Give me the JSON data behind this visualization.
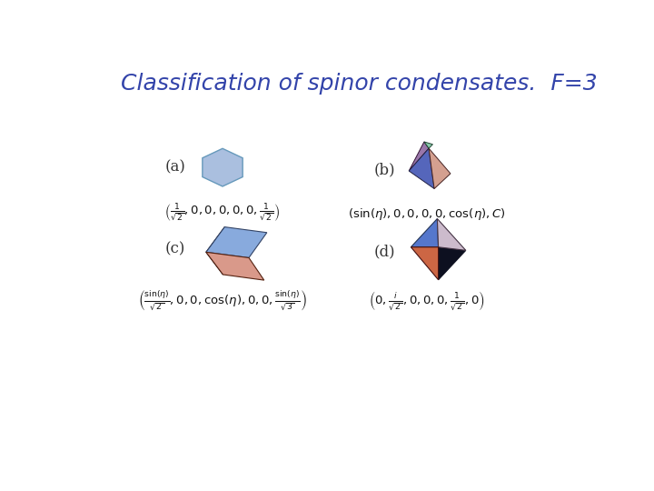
{
  "title": "Classification of spinor condensates.  F=3",
  "title_color": "#3344aa",
  "title_fontsize": 18,
  "bg_color": "#ffffff",
  "label_a": "(a)",
  "label_b": "(b)",
  "label_c": "(c)",
  "label_d": "(d)",
  "formula_a": "$\\left(\\frac{1}{\\sqrt{2}}, 0, 0, 0, 0, 0, \\frac{1}{\\sqrt{2}}\\right)$",
  "formula_b": "$(\\sin(\\eta), 0, 0, 0, 0, \\cos(\\eta), C)$",
  "formula_c": "$\\left(\\frac{\\sin(\\eta)}{\\sqrt{2}}, 0, 0, \\cos(\\eta), 0, 0, \\frac{\\sin(\\eta)}{\\sqrt{3}}\\right)$",
  "formula_d": "$\\left(0, \\frac{i}{\\sqrt{2}}, 0, 0, 0, \\frac{1}{\\sqrt{2}}, 0\\right)$",
  "hex_color_fill": "#aabfdf",
  "hex_color_edge": "#6699bb",
  "shape_b_colors": [
    "#5566bb",
    "#cc9999",
    "#9977aa",
    "#88ccaa"
  ],
  "shape_c_colors": [
    "#88aadd",
    "#d9998a",
    "#223355"
  ],
  "shape_d_colors": [
    "#6688cc",
    "#ccbbcc",
    "#cc6644",
    "#111122"
  ]
}
